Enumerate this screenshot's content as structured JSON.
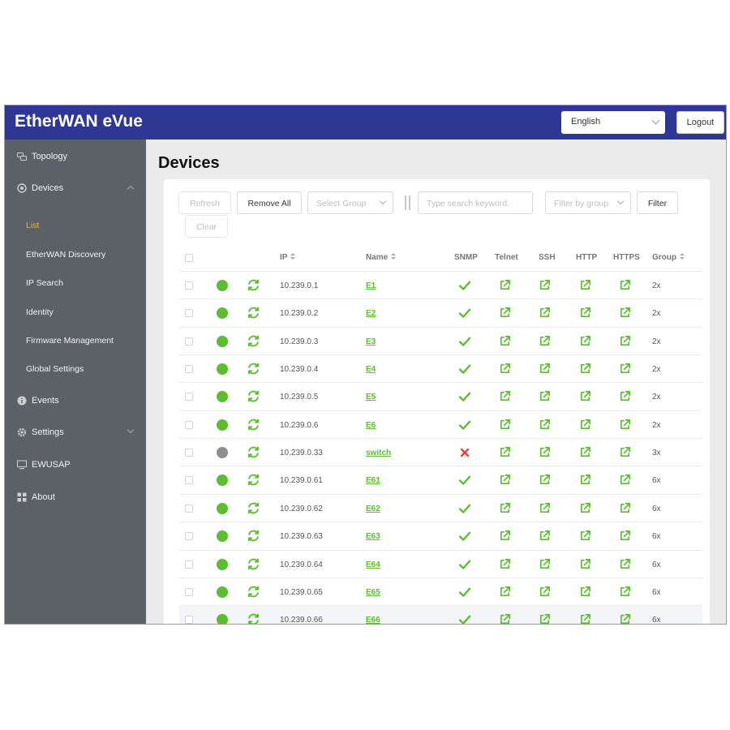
{
  "app": {
    "title": "EtherWAN eVue"
  },
  "header": {
    "language": "English",
    "logout": "Logout"
  },
  "sidebar": {
    "items": [
      {
        "label": "Topology",
        "icon": "topology-icon"
      },
      {
        "label": "Devices",
        "icon": "devices-icon",
        "expanded": true
      },
      {
        "label": "Events",
        "icon": "info-icon"
      },
      {
        "label": "Settings",
        "icon": "gear-icon",
        "expanded": false
      },
      {
        "label": "EWUSAP",
        "icon": "monitor-icon"
      },
      {
        "label": "About",
        "icon": "grid-icon"
      }
    ],
    "device_sub": [
      {
        "label": "List",
        "active": true
      },
      {
        "label": "EtherWAN Discovery"
      },
      {
        "label": "IP Search"
      },
      {
        "label": "Identity"
      },
      {
        "label": "Firmware Management"
      },
      {
        "label": "Global Settings"
      }
    ]
  },
  "page": {
    "title": "Devices"
  },
  "toolbar": {
    "refresh": "Refresh",
    "remove_all": "Remove All",
    "select_group": "Select Group",
    "search_placeholder": "Type search keyword.",
    "filter_group": "Filter by group",
    "filter": "Filter",
    "clear": "Clear"
  },
  "table": {
    "columns": [
      "IP",
      "Name",
      "SNMP",
      "Telnet",
      "SSH",
      "HTTP",
      "HTTPS",
      "Group"
    ],
    "rows": [
      {
        "ip": "10.239.0.1",
        "name": "E1",
        "status": "online",
        "snmp": true,
        "group": "2x"
      },
      {
        "ip": "10.239.0.2",
        "name": "E2",
        "status": "online",
        "snmp": true,
        "group": "2x"
      },
      {
        "ip": "10.239.0.3",
        "name": "E3",
        "status": "online",
        "snmp": true,
        "group": "2x"
      },
      {
        "ip": "10.239.0.4",
        "name": "E4",
        "status": "online",
        "snmp": true,
        "group": "2x"
      },
      {
        "ip": "10.239.0.5",
        "name": "E5",
        "status": "online",
        "snmp": true,
        "group": "2x"
      },
      {
        "ip": "10.239.0.6",
        "name": "E6",
        "status": "online",
        "snmp": true,
        "group": "2x"
      },
      {
        "ip": "10.239.0.33",
        "name": "switch",
        "status": "offline",
        "snmp": false,
        "group": "3x"
      },
      {
        "ip": "10.239.0.61",
        "name": "E61",
        "status": "online",
        "snmp": true,
        "group": "6x"
      },
      {
        "ip": "10.239.0.62",
        "name": "E62",
        "status": "online",
        "snmp": true,
        "group": "6x"
      },
      {
        "ip": "10.239.0.63",
        "name": "E63",
        "status": "online",
        "snmp": true,
        "group": "6x"
      },
      {
        "ip": "10.239.0.64",
        "name": "E64",
        "status": "online",
        "snmp": true,
        "group": "6x"
      },
      {
        "ip": "10.239.0.65",
        "name": "E65",
        "status": "online",
        "snmp": true,
        "group": "6x"
      },
      {
        "ip": "10.239.0.66",
        "name": "E66",
        "status": "online",
        "snmp": true,
        "group": "6x"
      }
    ]
  },
  "colors": {
    "header_bg": "#2f3795",
    "sidebar_bg": "#5b6166",
    "active_nav": "#e8b93a",
    "online": "#5bbd2f",
    "offline": "#8e8e94",
    "error": "#e8413c",
    "link": "#5bbd2f"
  }
}
